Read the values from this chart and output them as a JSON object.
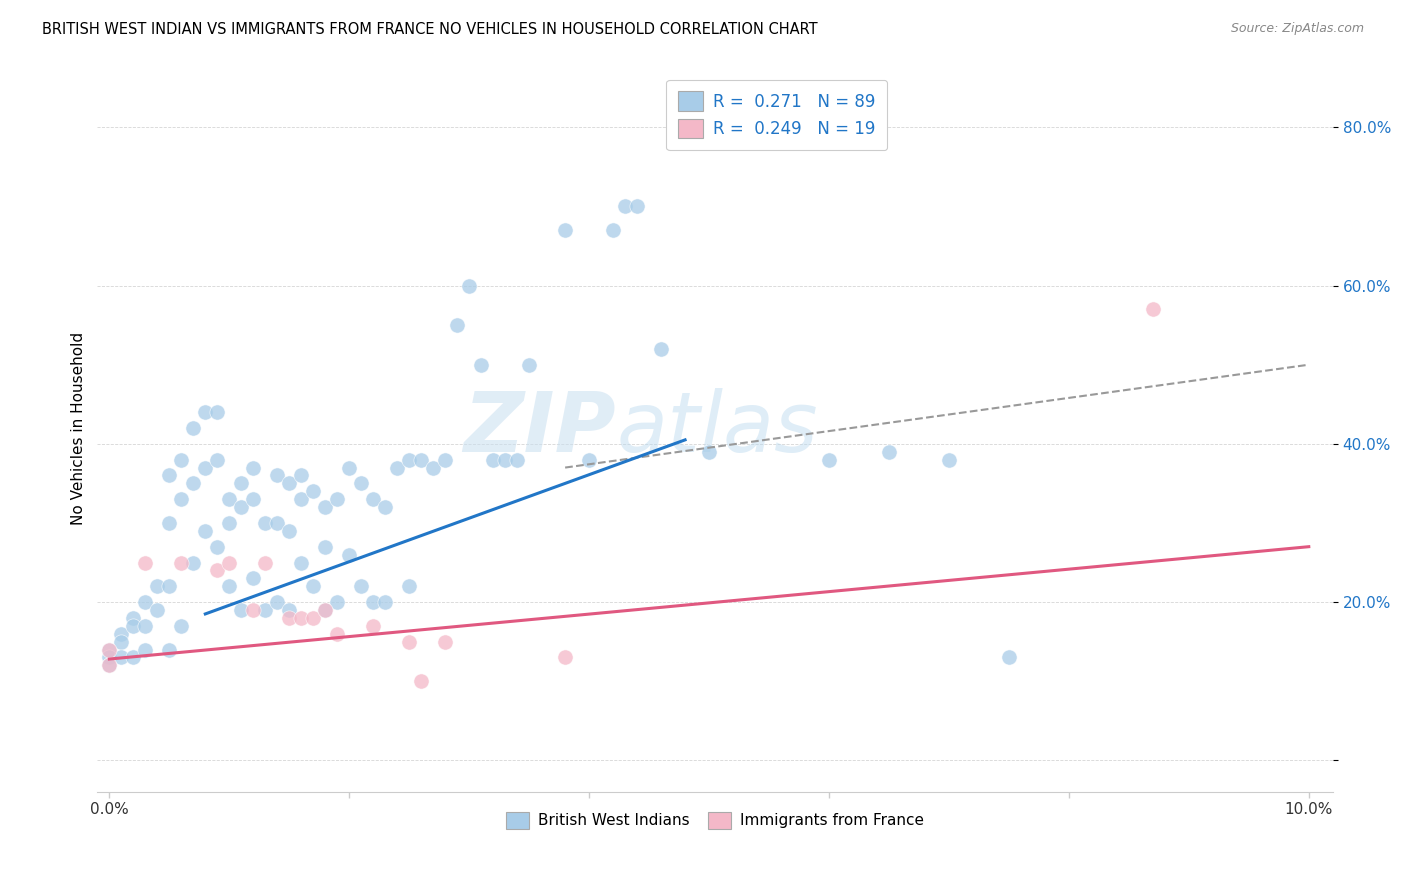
{
  "title": "BRITISH WEST INDIAN VS IMMIGRANTS FROM FRANCE NO VEHICLES IN HOUSEHOLD CORRELATION CHART",
  "source": "Source: ZipAtlas.com",
  "ylabel": "No Vehicles in Household",
  "y_ticks": [
    0.0,
    0.2,
    0.4,
    0.6,
    0.8
  ],
  "y_tick_labels": [
    "",
    "20.0%",
    "40.0%",
    "60.0%",
    "80.0%"
  ],
  "x_lim": [
    -0.001,
    0.102
  ],
  "y_lim": [
    -0.04,
    0.88
  ],
  "legend1_label": "R =  0.271   N = 89",
  "legend2_label": "R =  0.249   N = 19",
  "legend_bottom_label1": "British West Indians",
  "legend_bottom_label2": "Immigrants from France",
  "blue_color": "#a8cce8",
  "pink_color": "#f4b8c8",
  "blue_line_color": "#2176c7",
  "pink_line_color": "#e05880",
  "dashed_line_color": "#999999",
  "watermark_zip": "ZIP",
  "watermark_atlas": "atlas",
  "blue_line_x0": 0.008,
  "blue_line_y0": 0.185,
  "blue_line_x1": 0.048,
  "blue_line_y1": 0.405,
  "pink_line_x0": 0.0,
  "pink_line_y0": 0.128,
  "pink_line_x1": 0.1,
  "pink_line_y1": 0.27,
  "dash_line_x0": 0.038,
  "dash_line_y0": 0.37,
  "dash_line_x1": 0.1,
  "dash_line_y1": 0.5,
  "blue_x": [
    0.0,
    0.0,
    0.0,
    0.001,
    0.001,
    0.001,
    0.002,
    0.002,
    0.002,
    0.003,
    0.003,
    0.003,
    0.004,
    0.004,
    0.005,
    0.005,
    0.005,
    0.005,
    0.006,
    0.006,
    0.006,
    0.007,
    0.007,
    0.007,
    0.008,
    0.008,
    0.008,
    0.009,
    0.009,
    0.009,
    0.01,
    0.01,
    0.01,
    0.011,
    0.011,
    0.011,
    0.012,
    0.012,
    0.012,
    0.013,
    0.013,
    0.014,
    0.014,
    0.014,
    0.015,
    0.015,
    0.015,
    0.016,
    0.016,
    0.016,
    0.017,
    0.017,
    0.018,
    0.018,
    0.018,
    0.019,
    0.019,
    0.02,
    0.02,
    0.021,
    0.021,
    0.022,
    0.022,
    0.023,
    0.023,
    0.024,
    0.025,
    0.025,
    0.026,
    0.027,
    0.028,
    0.029,
    0.03,
    0.031,
    0.032,
    0.033,
    0.034,
    0.035,
    0.038,
    0.04,
    0.042,
    0.043,
    0.044,
    0.046,
    0.05,
    0.06,
    0.065,
    0.07,
    0.075
  ],
  "blue_y": [
    0.14,
    0.13,
    0.12,
    0.16,
    0.15,
    0.13,
    0.18,
    0.17,
    0.13,
    0.2,
    0.17,
    0.14,
    0.22,
    0.19,
    0.36,
    0.3,
    0.22,
    0.14,
    0.38,
    0.33,
    0.17,
    0.42,
    0.35,
    0.25,
    0.44,
    0.37,
    0.29,
    0.44,
    0.38,
    0.27,
    0.33,
    0.3,
    0.22,
    0.35,
    0.32,
    0.19,
    0.37,
    0.33,
    0.23,
    0.3,
    0.19,
    0.36,
    0.3,
    0.2,
    0.35,
    0.29,
    0.19,
    0.36,
    0.33,
    0.25,
    0.34,
    0.22,
    0.32,
    0.27,
    0.19,
    0.33,
    0.2,
    0.37,
    0.26,
    0.35,
    0.22,
    0.33,
    0.2,
    0.32,
    0.2,
    0.37,
    0.38,
    0.22,
    0.38,
    0.37,
    0.38,
    0.55,
    0.6,
    0.5,
    0.38,
    0.38,
    0.38,
    0.5,
    0.67,
    0.38,
    0.67,
    0.7,
    0.7,
    0.52,
    0.39,
    0.38,
    0.39,
    0.38,
    0.13
  ],
  "pink_x": [
    0.0,
    0.0,
    0.003,
    0.006,
    0.009,
    0.01,
    0.012,
    0.013,
    0.015,
    0.016,
    0.017,
    0.018,
    0.019,
    0.022,
    0.025,
    0.026,
    0.028,
    0.038,
    0.087
  ],
  "pink_y": [
    0.14,
    0.12,
    0.25,
    0.25,
    0.24,
    0.25,
    0.19,
    0.25,
    0.18,
    0.18,
    0.18,
    0.19,
    0.16,
    0.17,
    0.15,
    0.1,
    0.15,
    0.13,
    0.57
  ]
}
